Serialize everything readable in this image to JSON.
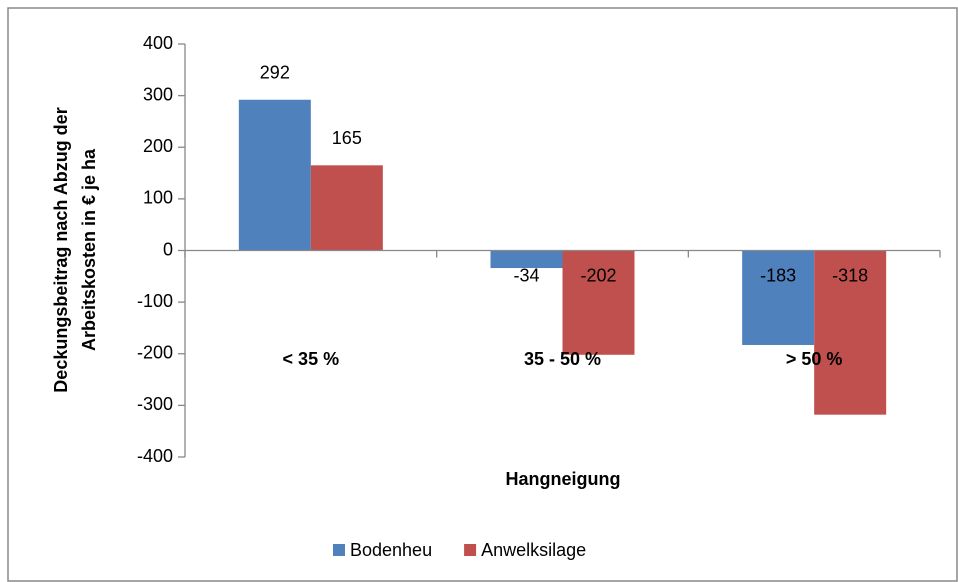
{
  "chart_data": {
    "type": "bar",
    "categories": [
      "< 35 %",
      "35 - 50 %",
      "> 50 %"
    ],
    "series": [
      {
        "name": "Bodenheu",
        "color": "#4f81bd",
        "values": [
          292,
          -34,
          -183
        ]
      },
      {
        "name": "Anwelksilage",
        "color": "#c0504d",
        "values": [
          165,
          -202,
          -318
        ]
      }
    ],
    "ylim": [
      -400,
      400
    ],
    "yticks": [
      -400,
      -300,
      -200,
      -100,
      0,
      100,
      200,
      300,
      400
    ],
    "y_label": [
      "Deckungsbeitrag nach Abzug der",
      "Arbeitskosten  in € je ha"
    ],
    "x_label": "Hangneigung",
    "legend": "bottom"
  }
}
